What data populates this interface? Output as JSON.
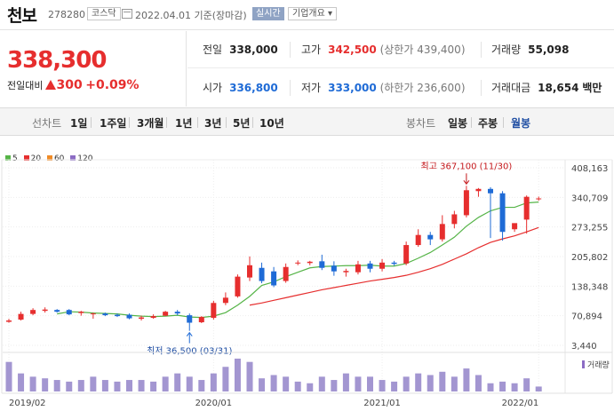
{
  "header": {
    "name": "천보",
    "code": "278280",
    "market": "코스닥",
    "date": "2022.04.01",
    "basis": "기준(장마감)",
    "realtime": "실시간",
    "company_info": "기업개요",
    "company_info_arrow": "▾"
  },
  "price": {
    "current": "338,300",
    "change_label": "전일대비",
    "change": "300",
    "change_pct": "+0.09%"
  },
  "stats": {
    "prev_close_label": "전일",
    "prev_close": "338,000",
    "high_label": "고가",
    "high": "342,500",
    "upper_limit": "(상한가 439,400)",
    "volume_label": "거래량",
    "volume": "55,098",
    "open_label": "시가",
    "open": "336,800",
    "low_label": "저가",
    "low": "333,000",
    "lower_limit": "(하한가 236,600)",
    "amount_label": "거래대금",
    "amount": "18,654",
    "amount_unit": "백만"
  },
  "tabs": {
    "line_label": "선차트",
    "periods": [
      "1일",
      "1주일",
      "3개월",
      "1년",
      "3년",
      "5년",
      "10년"
    ],
    "candle_label": "봉차트",
    "candle_types": [
      "일봉",
      "주봉",
      "월봉"
    ],
    "active_candle": "월봉"
  },
  "colors": {
    "up": "#e62e2e",
    "down": "#1f6bd6",
    "ma5": "#55b447",
    "ma20": "#e62e2e",
    "ma60": "#f08b26",
    "ma120": "#8c6cc4",
    "volume": "#a396d1"
  },
  "legend": [
    {
      "label": "5",
      "color": "#55b447"
    },
    {
      "label": "20",
      "color": "#e62e2e"
    },
    {
      "label": "60",
      "color": "#f08b26"
    },
    {
      "label": "120",
      "color": "#8c6cc4"
    }
  ],
  "chart_data": {
    "type": "candlestick",
    "period": "monthly",
    "y_ticks": [
      408163,
      340709,
      273255,
      205802,
      138348,
      70894,
      3440
    ],
    "ylim": [
      3440,
      408163
    ],
    "x_tick_labels": [
      "2019/02",
      "2020/01",
      "2021/01",
      "2022/01"
    ],
    "annotations": {
      "high_label": "최고 367,100 (11/30)",
      "low_label": "최저 36,500 (03/31)"
    },
    "volume_label": "거래량",
    "candles": [
      {
        "o": 57000,
        "h": 64000,
        "l": 55000,
        "c": 60000
      },
      {
        "o": 62000,
        "h": 80000,
        "l": 60000,
        "c": 75000
      },
      {
        "o": 75000,
        "h": 88000,
        "l": 72000,
        "c": 84000
      },
      {
        "o": 82000,
        "h": 90000,
        "l": 78000,
        "c": 85000
      },
      {
        "o": 84000,
        "h": 86000,
        "l": 78000,
        "c": 80000
      },
      {
        "o": 84000,
        "h": 86000,
        "l": 72000,
        "c": 74000
      },
      {
        "o": 77000,
        "h": 82000,
        "l": 71000,
        "c": 80000
      },
      {
        "o": 74000,
        "h": 78000,
        "l": 64000,
        "c": 76000
      },
      {
        "o": 76000,
        "h": 78000,
        "l": 70000,
        "c": 72000
      },
      {
        "o": 73000,
        "h": 76000,
        "l": 68000,
        "c": 70000
      },
      {
        "o": 73000,
        "h": 76000,
        "l": 63000,
        "c": 65000
      },
      {
        "o": 64000,
        "h": 71000,
        "l": 60000,
        "c": 67000
      },
      {
        "o": 66000,
        "h": 74000,
        "l": 64000,
        "c": 70000
      },
      {
        "o": 71000,
        "h": 82000,
        "l": 70000,
        "c": 80000
      },
      {
        "o": 80000,
        "h": 84000,
        "l": 72000,
        "c": 76000
      },
      {
        "o": 72000,
        "h": 76000,
        "l": 36500,
        "c": 55000
      },
      {
        "o": 56000,
        "h": 70000,
        "l": 54000,
        "c": 68000
      },
      {
        "o": 66000,
        "h": 105000,
        "l": 62000,
        "c": 100000
      },
      {
        "o": 100000,
        "h": 124000,
        "l": 95000,
        "c": 112000
      },
      {
        "o": 115000,
        "h": 165000,
        "l": 112000,
        "c": 160000
      },
      {
        "o": 158000,
        "h": 206000,
        "l": 150000,
        "c": 186000
      },
      {
        "o": 180000,
        "h": 192000,
        "l": 145000,
        "c": 150000
      },
      {
        "o": 172000,
        "h": 182000,
        "l": 136000,
        "c": 140000
      },
      {
        "o": 150000,
        "h": 190000,
        "l": 146000,
        "c": 182000
      },
      {
        "o": 190000,
        "h": 197000,
        "l": 186000,
        "c": 192000
      },
      {
        "o": 191000,
        "h": 196000,
        "l": 186000,
        "c": 194000
      },
      {
        "o": 195000,
        "h": 210000,
        "l": 175000,
        "c": 180000
      },
      {
        "o": 185000,
        "h": 195000,
        "l": 162000,
        "c": 172000
      },
      {
        "o": 170000,
        "h": 178000,
        "l": 160000,
        "c": 173000
      },
      {
        "o": 170000,
        "h": 196000,
        "l": 165000,
        "c": 188000
      },
      {
        "o": 190000,
        "h": 196000,
        "l": 170000,
        "c": 178000
      },
      {
        "o": 178000,
        "h": 200000,
        "l": 172000,
        "c": 192000
      },
      {
        "o": 192000,
        "h": 196000,
        "l": 185000,
        "c": 189000
      },
      {
        "o": 190000,
        "h": 240000,
        "l": 186000,
        "c": 232000
      },
      {
        "o": 232000,
        "h": 268000,
        "l": 228000,
        "c": 255000
      },
      {
        "o": 255000,
        "h": 262000,
        "l": 232000,
        "c": 245000
      },
      {
        "o": 245000,
        "h": 300000,
        "l": 240000,
        "c": 280000
      },
      {
        "o": 280000,
        "h": 310000,
        "l": 270000,
        "c": 302000
      },
      {
        "o": 300000,
        "h": 367100,
        "l": 295000,
        "c": 357000
      },
      {
        "o": 355000,
        "h": 362000,
        "l": 342000,
        "c": 360000
      },
      {
        "o": 360000,
        "h": 364000,
        "l": 248000,
        "c": 350000
      },
      {
        "o": 350000,
        "h": 355000,
        "l": 242000,
        "c": 262000
      },
      {
        "o": 268000,
        "h": 280000,
        "l": 262000,
        "c": 282000
      },
      {
        "o": 290000,
        "h": 345000,
        "l": 258000,
        "c": 342000
      },
      {
        "o": 336800,
        "h": 342500,
        "l": 333000,
        "c": 338300
      }
    ],
    "ma5": [
      null,
      null,
      null,
      null,
      75000,
      80000,
      79000,
      77000,
      76000,
      75000,
      72000,
      70000,
      69000,
      70000,
      72000,
      68000,
      67000,
      70000,
      78000,
      95000,
      115000,
      140000,
      148000,
      160000,
      170000,
      180000,
      183000,
      184000,
      185000,
      185000,
      186000,
      184000,
      184000,
      190000,
      202000,
      215000,
      232000,
      250000,
      275000,
      295000,
      310000,
      318000,
      318000,
      328000,
      330000
    ],
    "ma20": [
      null,
      null,
      null,
      null,
      null,
      null,
      null,
      null,
      null,
      null,
      null,
      null,
      null,
      null,
      null,
      null,
      null,
      null,
      null,
      null,
      95000,
      100000,
      106000,
      112000,
      118000,
      124000,
      130000,
      135000,
      140000,
      145000,
      150000,
      154000,
      158000,
      163000,
      170000,
      178000,
      188000,
      200000,
      212000,
      226000,
      238000,
      246000,
      253000,
      262000,
      272000
    ],
    "volume": [
      0.9,
      0.55,
      0.45,
      0.4,
      0.35,
      0.3,
      0.35,
      0.45,
      0.35,
      0.3,
      0.35,
      0.35,
      0.3,
      0.45,
      0.55,
      0.45,
      0.35,
      0.55,
      0.75,
      1.0,
      0.9,
      0.4,
      0.5,
      0.45,
      0.3,
      0.25,
      0.45,
      0.35,
      0.55,
      0.45,
      0.45,
      0.35,
      0.3,
      0.45,
      0.55,
      0.5,
      0.6,
      0.45,
      0.7,
      0.5,
      0.25,
      0.3,
      0.25,
      0.4,
      0.15
    ]
  }
}
